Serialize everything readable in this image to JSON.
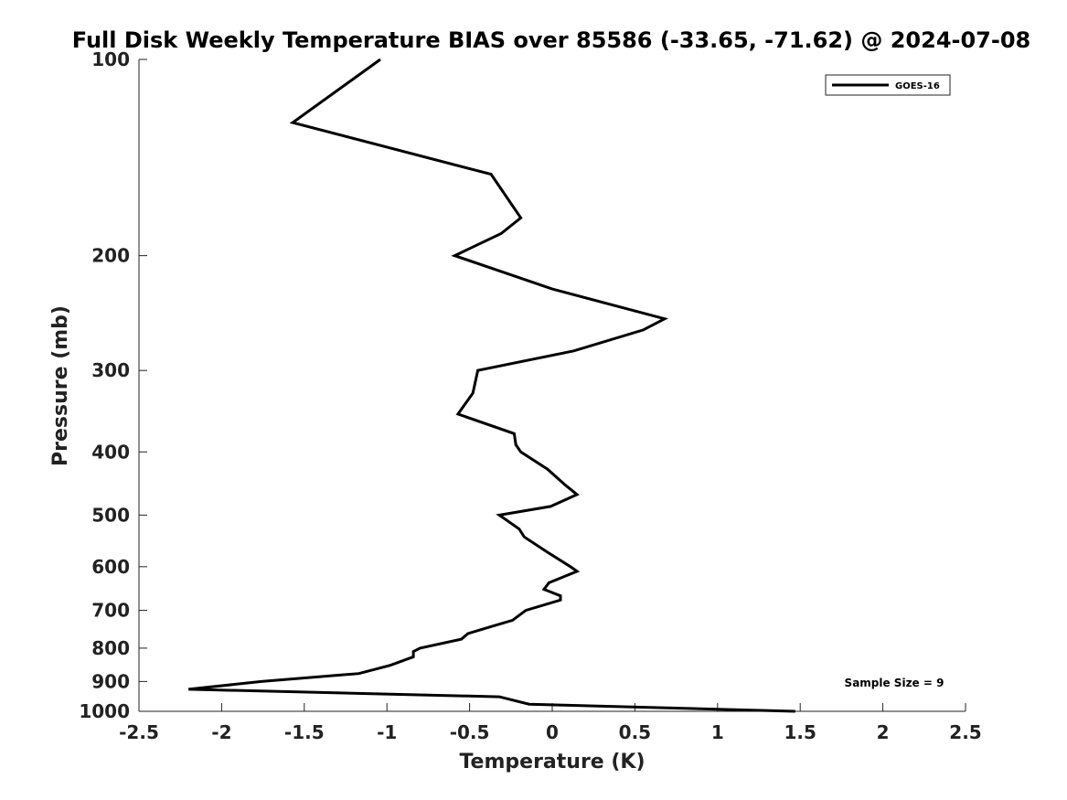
{
  "chart_data": {
    "type": "line",
    "title": "Full Disk Weekly Temperature BIAS over 85586 (-33.65, -71.62) @ 2024-07-08",
    "xlabel": "Temperature (K)",
    "ylabel": "Pressure (mb)",
    "xlim": [
      -2.5,
      2.5
    ],
    "ylim": [
      100,
      1000
    ],
    "y_scale": "log",
    "y_reversed": true,
    "grid": false,
    "legend_position": "top-right",
    "x_ticks": [
      "-2.5",
      "-2",
      "-1.5",
      "-1",
      "-0.5",
      "0",
      "0.5",
      "1",
      "1.5",
      "2",
      "2.5"
    ],
    "x_tick_values": [
      -2.5,
      -2,
      -1.5,
      -1,
      -0.5,
      0,
      0.5,
      1,
      1.5,
      2,
      2.5
    ],
    "y_ticks": [
      "100",
      "200",
      "300",
      "400",
      "500",
      "600",
      "700",
      "800",
      "900",
      "1000"
    ],
    "y_tick_values": [
      100,
      200,
      300,
      400,
      500,
      600,
      700,
      800,
      900,
      1000
    ],
    "series": [
      {
        "name": "GOES-16",
        "color": "#000000",
        "points": [
          [
            -1.04,
            100
          ],
          [
            -1.57,
            125
          ],
          [
            -0.37,
            150
          ],
          [
            -0.19,
            175
          ],
          [
            -0.31,
            185
          ],
          [
            -0.59,
            200
          ],
          [
            0.0,
            225
          ],
          [
            0.68,
            250
          ],
          [
            0.55,
            260
          ],
          [
            0.13,
            280
          ],
          [
            -0.45,
            300
          ],
          [
            -0.48,
            325
          ],
          [
            -0.57,
            350
          ],
          [
            -0.23,
            375
          ],
          [
            -0.22,
            390
          ],
          [
            -0.19,
            400
          ],
          [
            -0.03,
            425
          ],
          [
            0.08,
            450
          ],
          [
            0.15,
            465
          ],
          [
            -0.01,
            485
          ],
          [
            -0.32,
            500
          ],
          [
            -0.2,
            525
          ],
          [
            -0.17,
            540
          ],
          [
            -0.03,
            570
          ],
          [
            0.11,
            600
          ],
          [
            0.15,
            610
          ],
          [
            -0.02,
            635
          ],
          [
            -0.05,
            650
          ],
          [
            0.05,
            665
          ],
          [
            0.05,
            675
          ],
          [
            -0.16,
            700
          ],
          [
            -0.24,
            725
          ],
          [
            -0.36,
            740
          ],
          [
            -0.51,
            760
          ],
          [
            -0.55,
            775
          ],
          [
            -0.8,
            800
          ],
          [
            -0.84,
            810
          ],
          [
            -0.84,
            825
          ],
          [
            -0.98,
            850
          ],
          [
            -1.17,
            875
          ],
          [
            -1.76,
            900
          ],
          [
            -2.2,
            925
          ],
          [
            -0.32,
            950
          ],
          [
            -0.14,
            975
          ],
          [
            1.47,
            1000
          ]
        ]
      }
    ],
    "annotations": [
      {
        "text": "Sample Size = 9",
        "position": "bottom-right"
      }
    ]
  }
}
